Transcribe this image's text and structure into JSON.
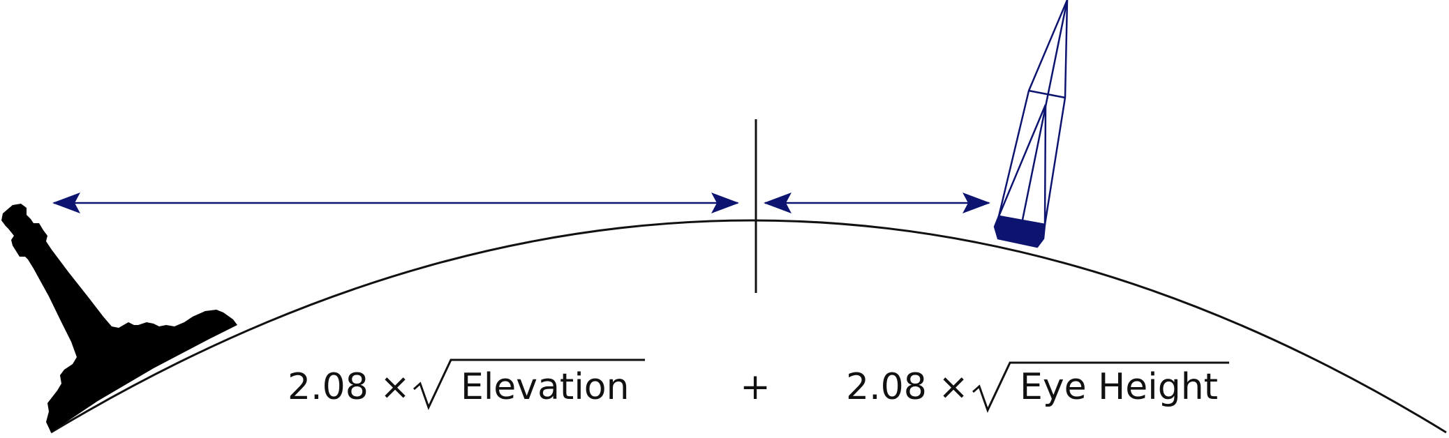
{
  "formula": {
    "left": {
      "coefficient": "2.08 ×",
      "term": "Elevation"
    },
    "operator": "+",
    "right": {
      "coefficient": "2.08 ×",
      "term": "Eye Height"
    }
  }
}
